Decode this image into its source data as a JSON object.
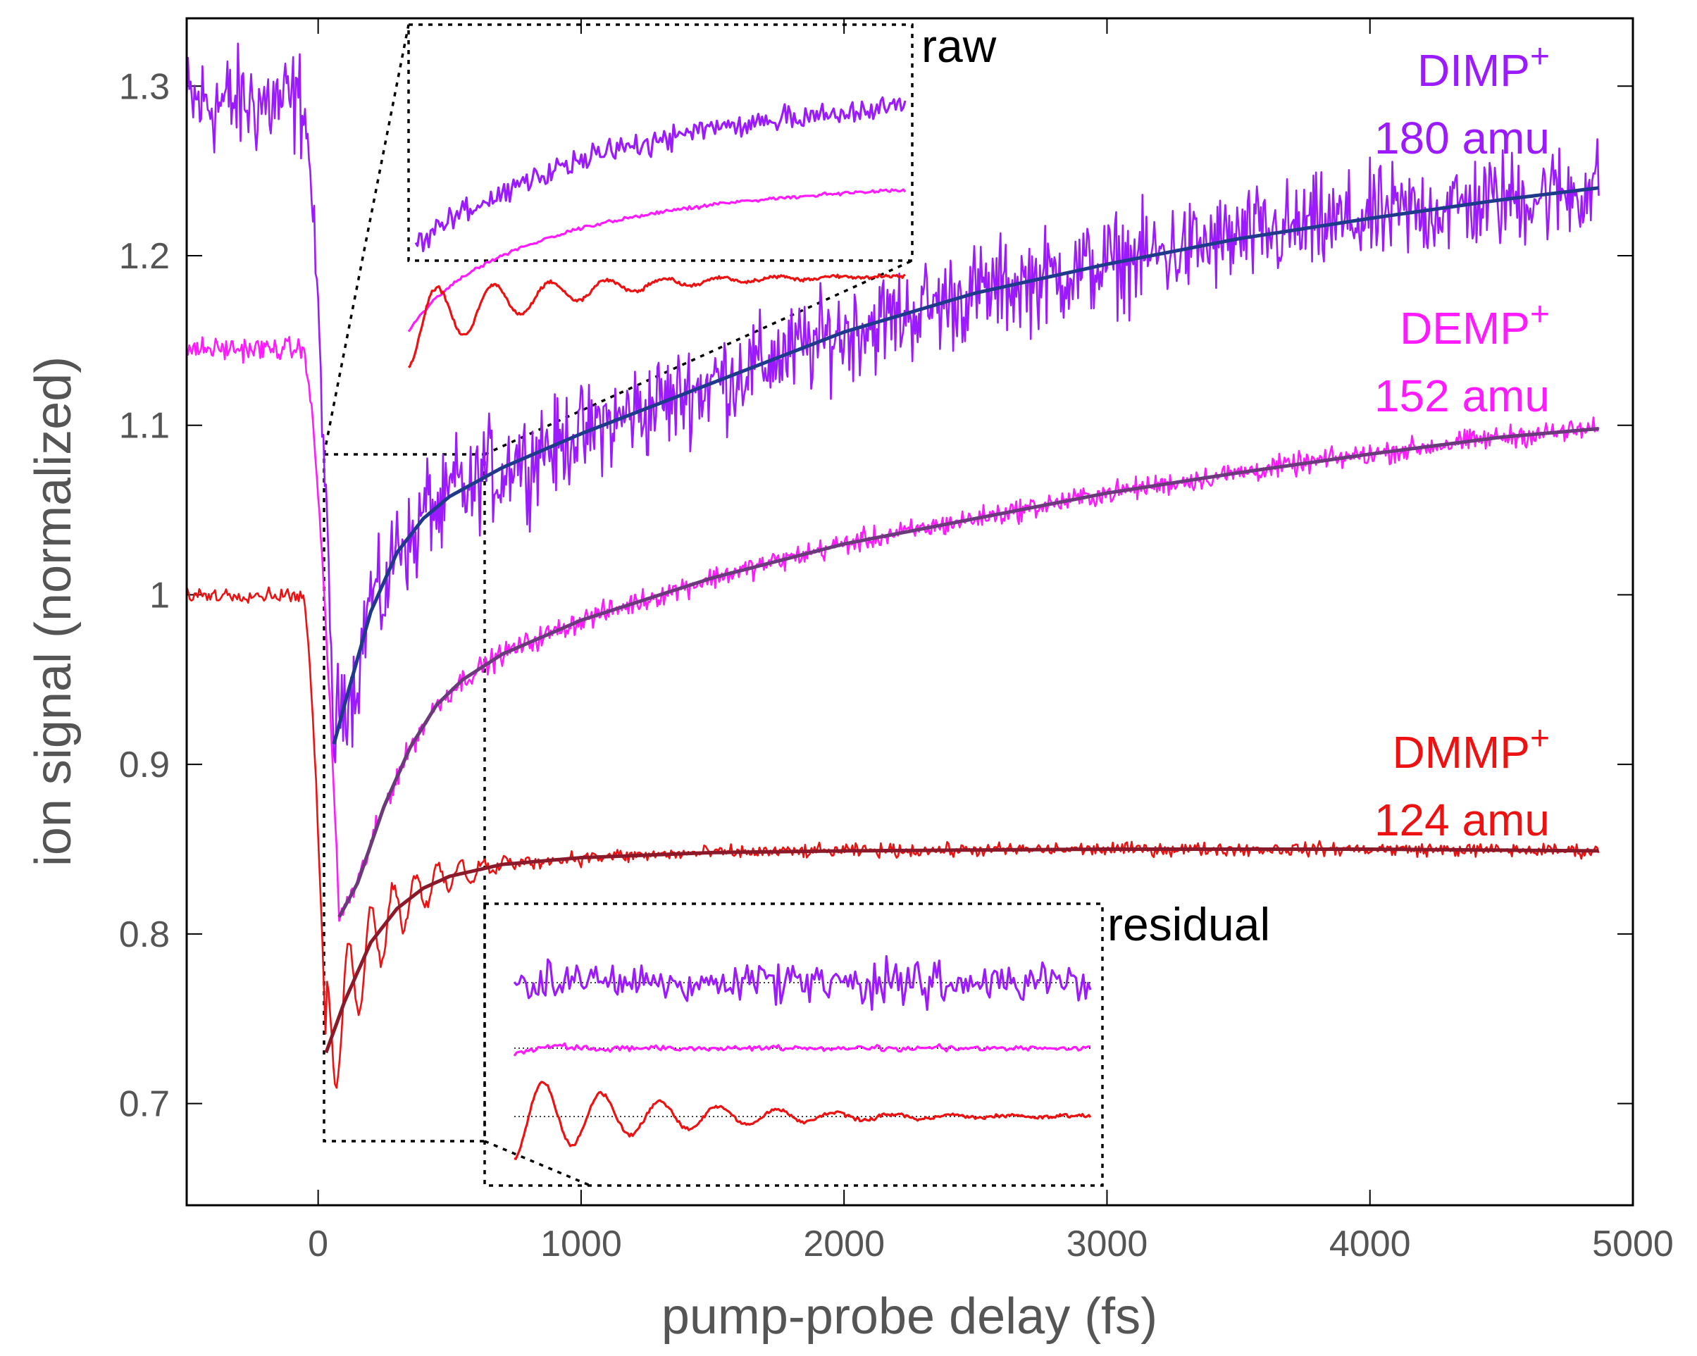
{
  "chart_data": {
    "type": "line",
    "title": "",
    "xlabel": "pump-probe delay (fs)",
    "ylabel": "ion signal (normalized)",
    "xlim": [
      -500,
      5000
    ],
    "ylim": [
      0.64,
      1.34
    ],
    "xticks": [
      0,
      1000,
      2000,
      3000,
      4000,
      5000
    ],
    "xtick_labels": [
      "0",
      "1000",
      "2000",
      "3000",
      "4000",
      "5000"
    ],
    "yticks": [
      0.7,
      0.8,
      0.9,
      1.0,
      1.1,
      1.2,
      1.3
    ],
    "ytick_labels": [
      "0.7",
      "0.8",
      "0.9",
      "1",
      "1.1",
      "1.2",
      "1.3"
    ],
    "series": [
      {
        "name": "DIMP+",
        "label_main": "DIMP",
        "label_sup": "+",
        "label_mass": "180 amu",
        "color": "#9b1aff",
        "fit_color": "#1f3a8a",
        "baseline": 1.29,
        "minimum": 0.91,
        "t_min": 60,
        "fit_points": [
          [
            60,
            0.912
          ],
          [
            100,
            0.935
          ],
          [
            200,
            0.99
          ],
          [
            300,
            1.025
          ],
          [
            400,
            1.045
          ],
          [
            500,
            1.058
          ],
          [
            700,
            1.075
          ],
          [
            1000,
            1.095
          ],
          [
            1500,
            1.125
          ],
          [
            2000,
            1.155
          ],
          [
            2500,
            1.178
          ],
          [
            3000,
            1.195
          ],
          [
            3500,
            1.21
          ],
          [
            4000,
            1.222
          ],
          [
            4500,
            1.233
          ],
          [
            4870,
            1.24
          ]
        ],
        "noise": 0.022
      },
      {
        "name": "DEMP+",
        "label_main": "DEMP",
        "label_sup": "+",
        "label_mass": "152 amu",
        "color": "#ff1aff",
        "fit_color": "#6a3a7a",
        "baseline": 1.145,
        "minimum": 0.81,
        "t_min": 80,
        "fit_points": [
          [
            80,
            0.81
          ],
          [
            150,
            0.83
          ],
          [
            250,
            0.875
          ],
          [
            350,
            0.91
          ],
          [
            450,
            0.935
          ],
          [
            550,
            0.95
          ],
          [
            700,
            0.965
          ],
          [
            1000,
            0.985
          ],
          [
            1500,
            1.01
          ],
          [
            2000,
            1.03
          ],
          [
            2500,
            1.045
          ],
          [
            3000,
            1.06
          ],
          [
            3500,
            1.072
          ],
          [
            4000,
            1.083
          ],
          [
            4500,
            1.093
          ],
          [
            4870,
            1.098
          ]
        ],
        "noise": 0.005
      },
      {
        "name": "DMMP+",
        "label_main": "DMMP",
        "label_sup": "+",
        "label_mass": "124 amu",
        "color": "#ee1111",
        "fit_color": "#8a1a2a",
        "baseline": 1.0,
        "minimum": 0.73,
        "t_min": 30,
        "fit_points": [
          [
            30,
            0.73
          ],
          [
            100,
            0.76
          ],
          [
            200,
            0.795
          ],
          [
            300,
            0.815
          ],
          [
            400,
            0.827
          ],
          [
            500,
            0.834
          ],
          [
            700,
            0.841
          ],
          [
            1000,
            0.845
          ],
          [
            1500,
            0.848
          ],
          [
            2000,
            0.849
          ],
          [
            3000,
            0.85
          ],
          [
            4000,
            0.85
          ],
          [
            4870,
            0.849
          ]
        ],
        "noise": 0.003
      }
    ],
    "insets": [
      {
        "name": "raw",
        "label": "raw"
      },
      {
        "name": "residual",
        "label": "residual"
      }
    ]
  }
}
